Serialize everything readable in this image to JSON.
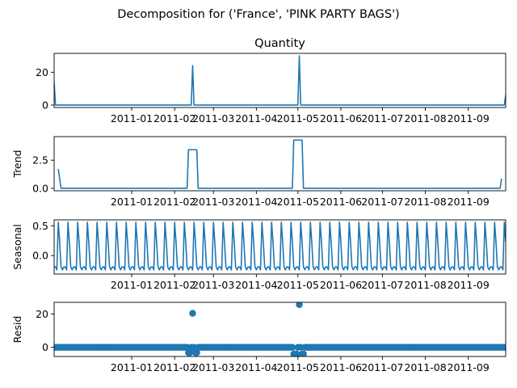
{
  "figure": {
    "suptitle": "Decomposition for ('France', 'PINK PARTY BAGS')",
    "line_color": "#1f77b4",
    "axis_color": "#000000"
  },
  "chart_data": [
    {
      "type": "line",
      "title": "Quantity",
      "ylabel": "",
      "xlim": [
        "2010-11-06",
        "2011-09-28"
      ],
      "ylim": [
        -1.5,
        31.5
      ],
      "yticks": [
        0,
        20
      ],
      "xtick_labels": [
        "2011-01",
        "2011-02",
        "2011-03",
        "2011-04",
        "2011-05",
        "2011-06",
        "2011-07",
        "2011-08",
        "2011-09"
      ],
      "x": [
        "2010-11-06",
        "2010-11-07",
        "2011-02-13",
        "2011-02-14",
        "2011-02-15",
        "2011-05-01",
        "2011-05-02",
        "2011-05-03",
        "2011-09-27",
        "2011-09-28"
      ],
      "values": [
        14,
        0,
        0,
        24,
        0,
        0,
        30,
        0,
        0,
        6
      ]
    },
    {
      "type": "line",
      "title": "",
      "ylabel": "Trend",
      "xlim": [
        "2010-11-06",
        "2011-09-28"
      ],
      "ylim": [
        -0.22,
        4.6
      ],
      "yticks": [
        0.0,
        2.5
      ],
      "ytick_labels": [
        "0.0",
        "2.5"
      ],
      "xtick_labels": [
        "2011-01",
        "2011-02",
        "2011-03",
        "2011-04",
        "2011-05",
        "2011-06",
        "2011-07",
        "2011-08",
        "2011-09"
      ],
      "x": [
        "2010-11-09",
        "2010-11-11",
        "2011-02-10",
        "2011-02-11",
        "2011-02-17",
        "2011-02-18",
        "2011-04-27",
        "2011-04-28",
        "2011-05-04",
        "2011-05-05",
        "2011-09-24",
        "2011-09-25"
      ],
      "values": [
        1.71,
        0,
        0,
        3.43,
        3.43,
        0,
        0,
        4.29,
        4.29,
        0,
        0,
        0.86
      ]
    },
    {
      "type": "line",
      "title": "",
      "ylabel": "Seasonal",
      "xlim": [
        "2010-11-06",
        "2011-09-28"
      ],
      "ylim": [
        -0.31,
        0.6
      ],
      "yticks": [
        0.0,
        0.5
      ],
      "ytick_labels": [
        "0.0",
        "0.5"
      ],
      "xtick_labels": [
        "2011-01",
        "2011-02",
        "2011-03",
        "2011-04",
        "2011-05",
        "2011-06",
        "2011-07",
        "2011-08",
        "2011-09"
      ],
      "period_days": 7,
      "pattern": [
        -0.19,
        -0.19,
        -0.24,
        0.56,
        0.23,
        -0.19,
        -0.24
      ]
    },
    {
      "type": "scatter",
      "title": "",
      "ylabel": "Resid",
      "xlim": [
        "2010-11-06",
        "2011-09-28"
      ],
      "ylim": [
        -5.5,
        27
      ],
      "yticks": [
        0,
        20
      ],
      "xtick_labels": [
        "2011-01",
        "2011-02",
        "2011-03",
        "2011-04",
        "2011-05",
        "2011-06",
        "2011-07",
        "2011-08",
        "2011-09"
      ],
      "baseline": 0,
      "outliers": [
        {
          "x": "2011-02-11",
          "y": -3.2
        },
        {
          "x": "2011-02-12",
          "y": -3.2
        },
        {
          "x": "2011-02-14",
          "y": 20.4
        },
        {
          "x": "2011-02-16",
          "y": -3.2
        },
        {
          "x": "2011-02-17",
          "y": -3.2
        },
        {
          "x": "2011-04-28",
          "y": -4.0
        },
        {
          "x": "2011-04-29",
          "y": -4.0
        },
        {
          "x": "2011-04-30",
          "y": -4.0
        },
        {
          "x": "2011-05-02",
          "y": 25.6
        },
        {
          "x": "2011-05-04",
          "y": -4.0
        },
        {
          "x": "2011-05-05",
          "y": -4.0
        }
      ]
    }
  ]
}
